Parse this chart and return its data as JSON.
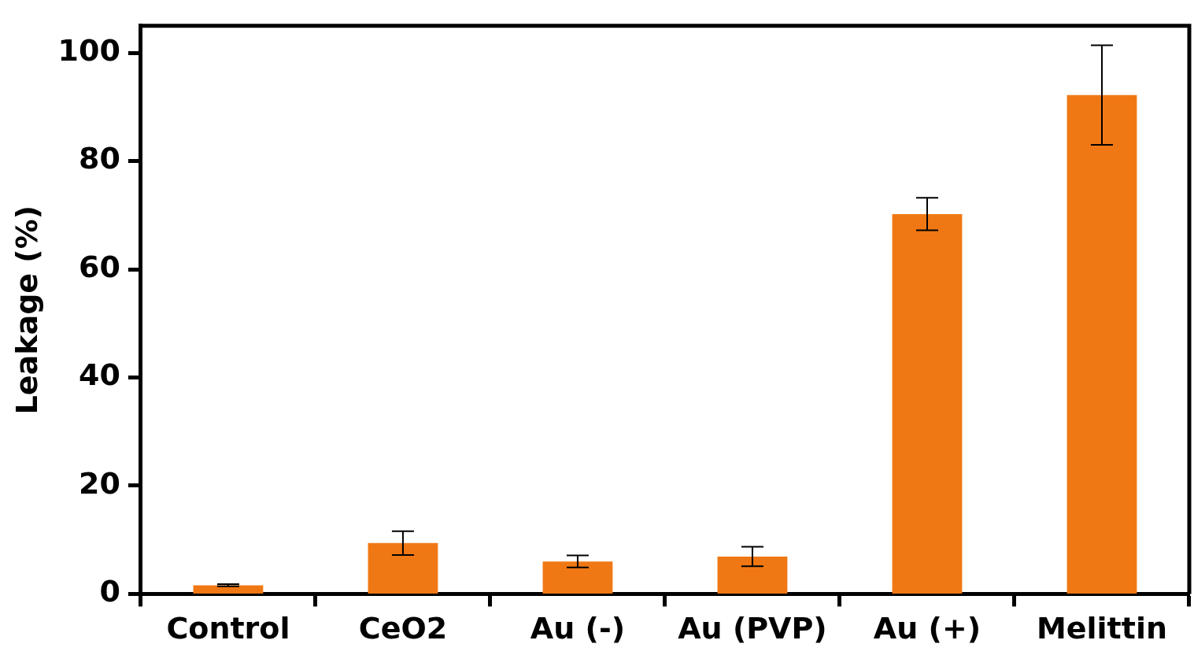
{
  "chart_data": {
    "type": "bar",
    "ylabel": "Leakage (%)",
    "categories": [
      "Control",
      "CeO2",
      "Au (-)",
      "Au (PVP)",
      "Au (+)",
      "Melittin"
    ],
    "values": [
      1.6,
      9.4,
      6.0,
      6.9,
      70.2,
      92.2
    ],
    "errors": [
      0.2,
      2.2,
      1.1,
      1.8,
      3.0,
      9.2
    ],
    "color": "#f07814",
    "ylim": [
      0,
      105
    ],
    "yticks": [
      0,
      20,
      40,
      60,
      80,
      100
    ],
    "grid": false,
    "legend": false
  }
}
